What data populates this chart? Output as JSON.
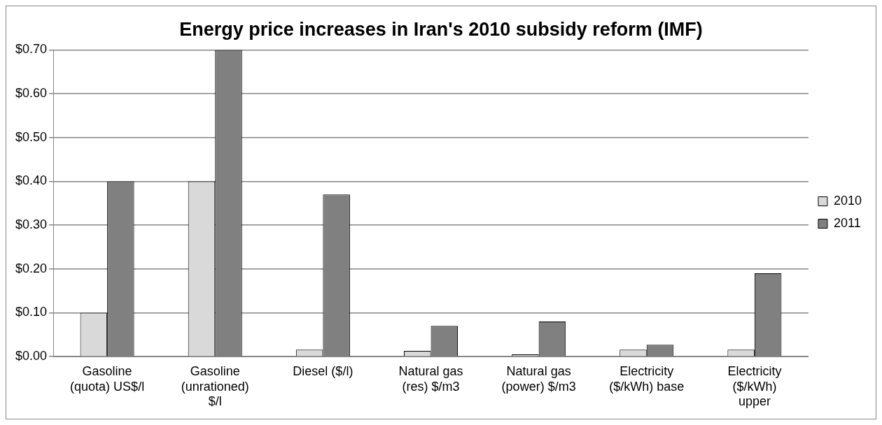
{
  "chart_data": {
    "type": "bar",
    "title": "Energy price increases in Iran's 2010 subsidy reform (IMF)",
    "categories": [
      "Gasoline (quota) US$/l",
      "Gasoline (unrationed) $/l",
      "Diesel ($/l)",
      "Natural gas (res) $/m3",
      "Natural gas (power) $/m3",
      "Electricity ($/kWh) base",
      "Electricity ($/kWh) upper"
    ],
    "series": [
      {
        "name": "2010",
        "color": "#d9d9d9",
        "values": [
          0.1,
          0.4,
          0.016,
          0.013,
          0.005,
          0.016,
          0.016
        ]
      },
      {
        "name": "2011",
        "color": "#808080",
        "values": [
          0.4,
          0.7,
          0.37,
          0.07,
          0.08,
          0.027,
          0.19
        ]
      }
    ],
    "ylim": [
      0,
      0.7
    ],
    "yticks": [
      {
        "value": 0,
        "label": "$0.00"
      },
      {
        "value": 0.1,
        "label": "$0.10"
      },
      {
        "value": 0.2,
        "label": "$0.20"
      },
      {
        "value": 0.3,
        "label": "$0.30"
      },
      {
        "value": 0.4,
        "label": "$0.40"
      },
      {
        "value": 0.5,
        "label": "$0.50"
      },
      {
        "value": 0.6,
        "label": "$0.60"
      },
      {
        "value": 0.7,
        "label": "$0.70"
      }
    ],
    "grid": "y",
    "legend": "right"
  }
}
